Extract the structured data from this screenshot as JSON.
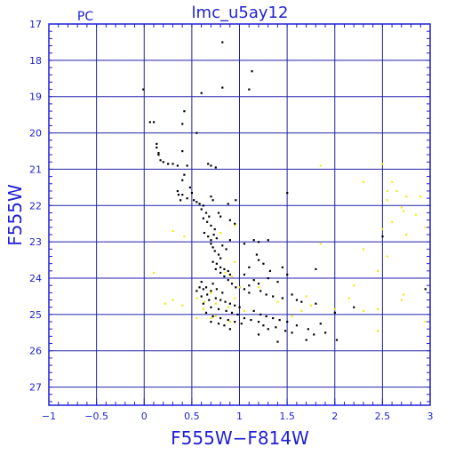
{
  "chart_data": {
    "type": "scatter",
    "title": "lmc_u5ay12",
    "corner_label": "PC",
    "xlabel": "F555W−F814W",
    "ylabel": "F555W",
    "xlim": [
      -1,
      3
    ],
    "ylim": [
      27.5,
      17
    ],
    "y_inverted": true,
    "grid": true,
    "x_ticks": [
      -1,
      -0.5,
      0,
      0.5,
      1,
      1.5,
      2,
      2.5,
      3
    ],
    "x_tick_labels": [
      "−1",
      "−0.5",
      "0",
      "0.5",
      "1",
      "1.5",
      "2",
      "2.5",
      "3"
    ],
    "y_ticks": [
      17,
      18,
      19,
      20,
      21,
      22,
      23,
      24,
      25,
      26,
      27
    ],
    "y_tick_labels": [
      "17",
      "18",
      "19",
      "20",
      "21",
      "22",
      "23",
      "24",
      "25",
      "26",
      "27"
    ],
    "colors": {
      "frame": "#1f1fd6",
      "grid": "#2222aa",
      "text": "#1f1fd6",
      "black_points": "#000000",
      "yellow_points": "#f2ea14"
    },
    "series": [
      {
        "color": "black",
        "points": [
          [
            0.82,
            17.5
          ],
          [
            1.13,
            18.3
          ],
          [
            0.82,
            18.75
          ],
          [
            1.1,
            18.8
          ],
          [
            0.6,
            18.9
          ],
          [
            -0.01,
            18.8
          ],
          [
            0.42,
            19.4
          ],
          [
            0.06,
            19.7
          ],
          [
            0.1,
            19.7
          ],
          [
            0.4,
            19.75
          ],
          [
            0.55,
            20.0
          ],
          [
            0.13,
            20.3
          ],
          [
            0.13,
            20.4
          ],
          [
            0.15,
            20.55
          ],
          [
            0.15,
            20.6
          ],
          [
            0.4,
            20.5
          ],
          [
            0.17,
            20.75
          ],
          [
            0.2,
            20.8
          ],
          [
            0.25,
            20.85
          ],
          [
            0.3,
            20.85
          ],
          [
            0.35,
            20.9
          ],
          [
            0.45,
            20.9
          ],
          [
            0.67,
            20.85
          ],
          [
            0.7,
            20.9
          ],
          [
            0.75,
            20.95
          ],
          [
            0.42,
            21.15
          ],
          [
            0.4,
            21.3
          ],
          [
            0.48,
            21.5
          ],
          [
            0.35,
            21.6
          ],
          [
            0.4,
            21.7
          ],
          [
            0.45,
            21.8
          ],
          [
            0.52,
            21.85
          ],
          [
            0.55,
            21.9
          ],
          [
            0.58,
            21.95
          ],
          [
            0.62,
            22.0
          ],
          [
            0.7,
            21.75
          ],
          [
            0.72,
            21.85
          ],
          [
            0.36,
            21.7
          ],
          [
            0.38,
            21.85
          ],
          [
            0.5,
            21.65
          ],
          [
            0.6,
            22.1
          ],
          [
            0.65,
            22.2
          ],
          [
            0.68,
            22.3
          ],
          [
            0.62,
            22.35
          ],
          [
            0.66,
            22.45
          ],
          [
            0.7,
            22.55
          ],
          [
            0.74,
            22.65
          ],
          [
            0.78,
            22.2
          ],
          [
            0.8,
            22.3
          ],
          [
            0.88,
            21.95
          ],
          [
            0.96,
            21.85
          ],
          [
            1.5,
            21.65
          ],
          [
            0.9,
            22.4
          ],
          [
            0.95,
            22.5
          ],
          [
            0.63,
            22.75
          ],
          [
            0.67,
            22.85
          ],
          [
            0.7,
            22.95
          ],
          [
            0.73,
            22.8
          ],
          [
            0.76,
            22.9
          ],
          [
            0.7,
            23.05
          ],
          [
            0.72,
            23.15
          ],
          [
            0.74,
            23.25
          ],
          [
            0.78,
            23.35
          ],
          [
            0.8,
            23.45
          ],
          [
            0.82,
            23.1
          ],
          [
            0.86,
            23.2
          ],
          [
            0.72,
            23.55
          ],
          [
            0.76,
            23.6
          ],
          [
            0.8,
            23.7
          ],
          [
            0.84,
            23.75
          ],
          [
            0.88,
            23.8
          ],
          [
            0.9,
            23.9
          ],
          [
            0.75,
            23.75
          ],
          [
            0.8,
            23.85
          ],
          [
            0.84,
            23.95
          ],
          [
            0.88,
            24.05
          ],
          [
            0.92,
            24.15
          ],
          [
            0.96,
            24.25
          ],
          [
            1.15,
            22.95
          ],
          [
            1.2,
            23.0
          ],
          [
            1.3,
            22.95
          ],
          [
            0.9,
            22.95
          ],
          [
            1.05,
            23.05
          ],
          [
            1.18,
            23.35
          ],
          [
            1.2,
            23.5
          ],
          [
            1.25,
            23.6
          ],
          [
            1.1,
            23.7
          ],
          [
            1.32,
            23.8
          ],
          [
            1.45,
            23.7
          ],
          [
            1.5,
            23.9
          ],
          [
            1.3,
            24.0
          ],
          [
            1.4,
            24.1
          ],
          [
            1.2,
            24.15
          ],
          [
            1.1,
            24.2
          ],
          [
            1.0,
            24.25
          ],
          [
            1.05,
            24.3
          ],
          [
            1.1,
            24.4
          ],
          [
            1.22,
            24.35
          ],
          [
            1.28,
            24.45
          ],
          [
            1.35,
            24.5
          ],
          [
            1.45,
            24.55
          ],
          [
            1.55,
            24.45
          ],
          [
            1.6,
            24.6
          ],
          [
            1.65,
            24.65
          ],
          [
            1.8,
            23.75
          ],
          [
            1.8,
            24.7
          ],
          [
            0.6,
            24.1
          ],
          [
            0.65,
            24.25
          ],
          [
            0.7,
            24.35
          ],
          [
            0.55,
            24.35
          ],
          [
            0.6,
            24.5
          ],
          [
            0.68,
            24.6
          ],
          [
            0.75,
            24.55
          ],
          [
            0.8,
            24.6
          ],
          [
            0.85,
            24.65
          ],
          [
            0.9,
            24.7
          ],
          [
            0.95,
            24.75
          ],
          [
            1.0,
            24.8
          ],
          [
            0.62,
            24.7
          ],
          [
            0.7,
            24.8
          ],
          [
            0.78,
            24.85
          ],
          [
            0.86,
            24.9
          ],
          [
            0.92,
            24.95
          ],
          [
            0.98,
            25.0
          ],
          [
            0.65,
            24.95
          ],
          [
            0.72,
            25.05
          ],
          [
            0.8,
            25.1
          ],
          [
            0.88,
            25.15
          ],
          [
            0.95,
            25.2
          ],
          [
            1.02,
            25.25
          ],
          [
            0.7,
            25.2
          ],
          [
            0.78,
            25.25
          ],
          [
            0.84,
            25.3
          ],
          [
            0.9,
            25.4
          ],
          [
            1.05,
            25.1
          ],
          [
            1.12,
            25.15
          ],
          [
            1.15,
            24.9
          ],
          [
            1.22,
            25.0
          ],
          [
            1.28,
            25.05
          ],
          [
            1.35,
            25.1
          ],
          [
            1.42,
            25.15
          ],
          [
            1.5,
            25.2
          ],
          [
            1.2,
            25.2
          ],
          [
            1.25,
            25.3
          ],
          [
            1.3,
            25.4
          ],
          [
            1.38,
            25.35
          ],
          [
            1.48,
            25.45
          ],
          [
            1.55,
            25.5
          ],
          [
            1.6,
            25.3
          ],
          [
            1.72,
            25.4
          ],
          [
            1.78,
            25.55
          ],
          [
            1.85,
            25.25
          ],
          [
            1.9,
            25.5
          ],
          [
            2.0,
            24.95
          ],
          [
            2.02,
            25.7
          ],
          [
            1.2,
            25.55
          ],
          [
            1.4,
            25.75
          ],
          [
            1.7,
            25.7
          ],
          [
            2.2,
            24.8
          ],
          [
            0.58,
            24.25
          ],
          [
            0.62,
            24.3
          ],
          [
            0.66,
            24.45
          ],
          [
            0.72,
            24.15
          ],
          [
            0.76,
            24.3
          ],
          [
            0.82,
            24.4
          ],
          [
            2.5,
            22.85
          ],
          [
            2.95,
            24.3
          ],
          [
            1.05,
            23.9
          ],
          [
            1.15,
            24.05
          ]
        ]
      },
      {
        "color": "yellow",
        "points": [
          [
            1.85,
            20.9
          ],
          [
            2.5,
            20.85
          ],
          [
            2.3,
            21.35
          ],
          [
            2.6,
            21.35
          ],
          [
            3.0,
            21.2
          ],
          [
            2.55,
            21.6
          ],
          [
            2.65,
            21.6
          ],
          [
            2.75,
            21.75
          ],
          [
            2.9,
            21.75
          ],
          [
            2.55,
            21.85
          ],
          [
            2.7,
            22.05
          ],
          [
            2.72,
            22.15
          ],
          [
            2.85,
            22.25
          ],
          [
            2.6,
            22.45
          ],
          [
            2.95,
            22.6
          ],
          [
            2.5,
            22.65
          ],
          [
            2.75,
            22.8
          ],
          [
            2.3,
            23.2
          ],
          [
            2.55,
            23.4
          ],
          [
            1.85,
            23.05
          ],
          [
            0.3,
            22.7
          ],
          [
            0.42,
            22.85
          ],
          [
            0.8,
            22.75
          ],
          [
            0.95,
            22.55
          ],
          [
            0.1,
            23.85
          ],
          [
            0.95,
            23.55
          ],
          [
            0.85,
            23.85
          ],
          [
            0.92,
            23.95
          ],
          [
            1.0,
            24.25
          ],
          [
            2.2,
            24.2
          ],
          [
            2.45,
            23.8
          ],
          [
            1.7,
            24.5
          ],
          [
            1.75,
            24.75
          ],
          [
            0.55,
            24.55
          ],
          [
            1.2,
            24.25
          ],
          [
            0.3,
            24.6
          ],
          [
            0.4,
            24.75
          ],
          [
            0.22,
            24.7
          ],
          [
            0.63,
            24.65
          ],
          [
            0.75,
            24.7
          ],
          [
            0.88,
            24.8
          ],
          [
            0.75,
            25.05
          ],
          [
            0.55,
            25.1
          ],
          [
            0.7,
            25.1
          ],
          [
            1.05,
            24.9
          ],
          [
            0.62,
            24.85
          ],
          [
            0.9,
            25.2
          ],
          [
            1.55,
            25.05
          ],
          [
            1.65,
            24.9
          ],
          [
            2.3,
            24.9
          ],
          [
            2.45,
            24.85
          ],
          [
            2.7,
            24.6
          ],
          [
            2.72,
            24.45
          ],
          [
            2.95,
            25.2
          ],
          [
            2.15,
            24.55
          ],
          [
            2.0,
            24.85
          ],
          [
            1.4,
            24.65
          ],
          [
            2.45,
            25.45
          ],
          [
            0.95,
            24.55
          ],
          [
            0.7,
            24.4
          ]
        ]
      }
    ]
  }
}
